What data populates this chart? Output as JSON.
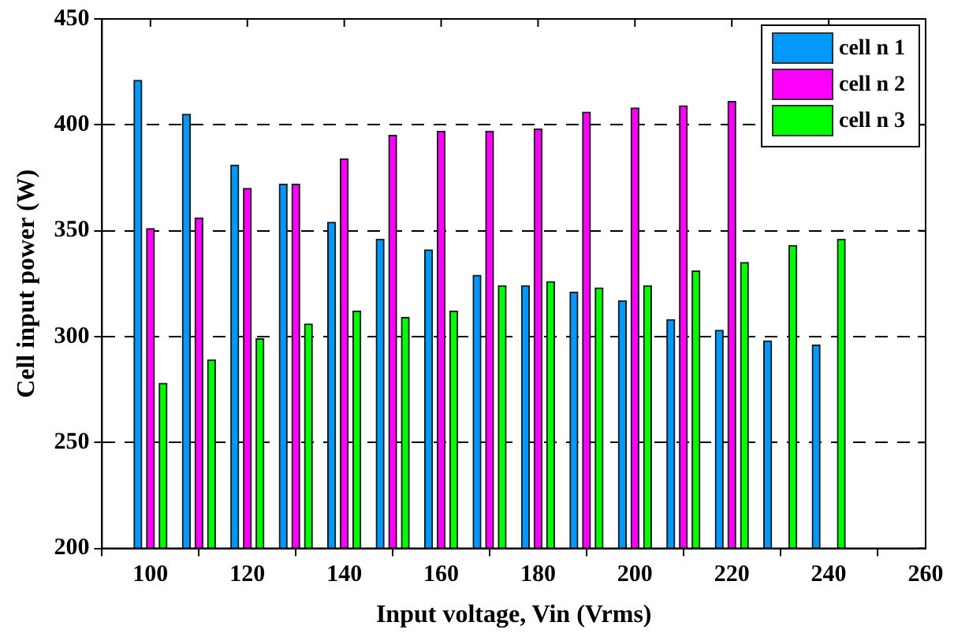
{
  "chart_data": {
    "type": "bar",
    "xlabel": "Input voltage, Vin (Vrms)",
    "ylabel": "Cell input power (W)",
    "x": [
      100,
      110,
      120,
      130,
      140,
      150,
      160,
      170,
      180,
      190,
      200,
      210,
      220,
      230,
      240
    ],
    "series": [
      {
        "name": "cell n 1",
        "color": "#0099ff",
        "values": [
          421,
          405,
          381,
          372,
          354,
          346,
          341,
          329,
          324,
          321,
          317,
          308,
          303,
          298,
          296
        ]
      },
      {
        "name": "cell n 2",
        "color": "#ff00ff",
        "values": [
          351,
          356,
          370,
          372,
          384,
          395,
          397,
          397,
          398,
          406,
          408,
          409,
          411,
          null,
          null
        ]
      },
      {
        "name": "cell n 3",
        "color": "#00ff00",
        "values": [
          278,
          289,
          299,
          306,
          312,
          309,
          312,
          324,
          326,
          323,
          324,
          331,
          335,
          343,
          346
        ]
      }
    ],
    "xlim": [
      90,
      260
    ],
    "xticks": [
      100,
      120,
      140,
      160,
      180,
      200,
      220,
      240,
      260
    ],
    "ylim": [
      200,
      450
    ],
    "yticks": [
      200,
      250,
      300,
      350,
      400,
      450
    ],
    "grid": "y",
    "legend": "top right"
  }
}
